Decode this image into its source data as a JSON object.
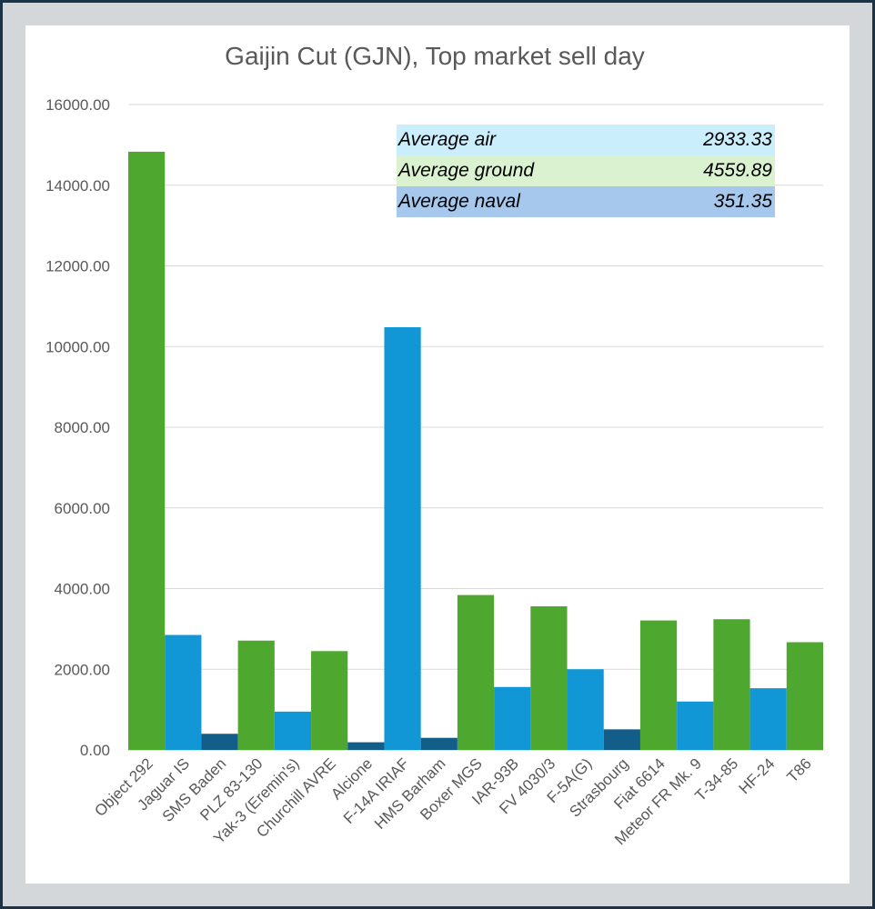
{
  "chart_data": {
    "type": "bar",
    "title": "Gaijin Cut (GJN), Top market sell day",
    "xlabel": "",
    "ylabel": "",
    "ylim": [
      0,
      16000
    ],
    "yticks": [
      "0.00",
      "2000.00",
      "4000.00",
      "6000.00",
      "8000.00",
      "10000.00",
      "12000.00",
      "14000.00",
      "16000.00"
    ],
    "grid": true,
    "categories": [
      "Object 292",
      "Jaguar IS",
      "SMS Baden",
      "PLZ 83-130",
      "Yak-3 (Eremin's)",
      "Churchill AVRE",
      "Alcione",
      "F-14A IRIAF",
      "HMS Barham",
      "Boxer MGS",
      "IAR-93B",
      "FV 4030/3",
      "F-5A(G)",
      "Strasbourg",
      "Fiat 6614",
      "Meteor FR Mk. 9",
      "T-34-85",
      "HF-24",
      "T86"
    ],
    "values": [
      14830,
      2850,
      400,
      2710,
      950,
      2450,
      190,
      10480,
      300,
      3840,
      1560,
      3560,
      2000,
      510,
      3210,
      1200,
      3240,
      1530,
      2670
    ],
    "kinds": [
      "ground",
      "air",
      "naval",
      "ground",
      "air",
      "ground",
      "naval",
      "air",
      "naval",
      "ground",
      "air",
      "ground",
      "air",
      "naval",
      "ground",
      "air",
      "ground",
      "air",
      "ground"
    ],
    "colors": {
      "ground": "#4ea72e",
      "air": "#1197d6",
      "naval": "#135e88"
    }
  },
  "averages": [
    {
      "label": "Average air",
      "value": "2933.33",
      "bg": "#caeefb"
    },
    {
      "label": "Average ground",
      "value": "4559.89",
      "bg": "#daf2d0"
    },
    {
      "label": "Average naval",
      "value": "351.35",
      "bg": "#a6c8ec"
    }
  ]
}
